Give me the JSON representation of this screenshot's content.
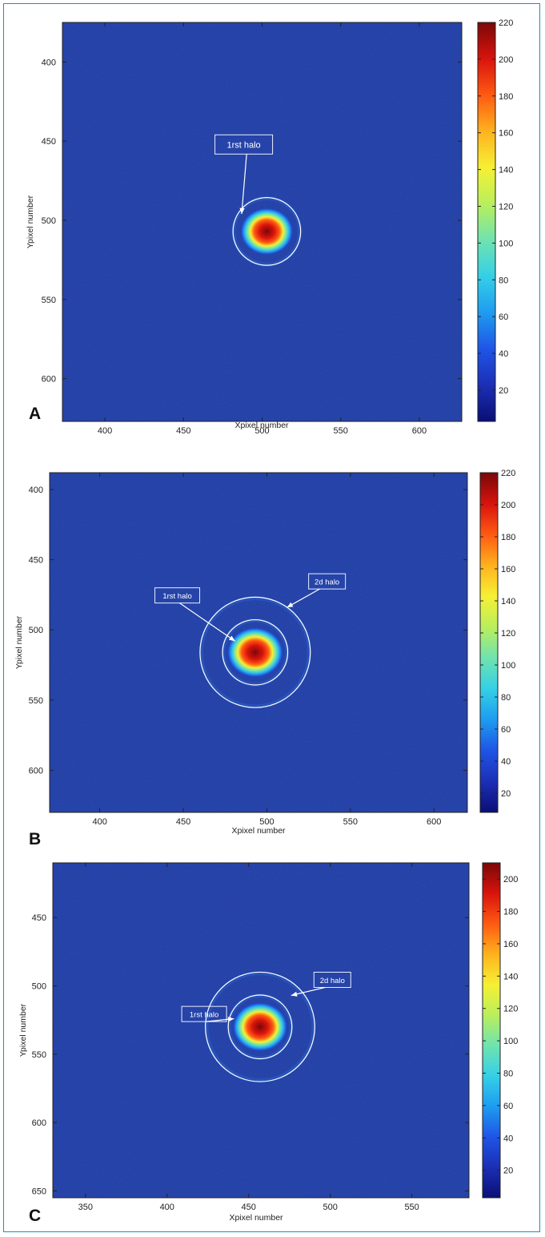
{
  "figure": {
    "frame_color": "#1d8fbf",
    "background_color": "#1f3aa0",
    "halo_color": "#ffffff",
    "colormap": [
      "#0a0f75",
      "#1c2fb5",
      "#1f55e6",
      "#1e9cf0",
      "#35d0e6",
      "#6fe3b0",
      "#b9ef5c",
      "#f6f034",
      "#ffb21e",
      "#ff5a12",
      "#d8130d",
      "#7a0808"
    ]
  },
  "chart_data": [
    {
      "panel_label": "A",
      "type": "heatmap",
      "xlabel": "Xpixel number",
      "ylabel": "Ypixel number",
      "xlim": [
        373,
        627
      ],
      "ylim": [
        375,
        627
      ],
      "xticks": [
        400,
        450,
        500,
        550,
        600
      ],
      "yticks": [
        400,
        450,
        500,
        550,
        600
      ],
      "colorbar": {
        "range": [
          3,
          220
        ],
        "ticks": [
          20,
          40,
          60,
          80,
          100,
          120,
          140,
          160,
          180,
          200,
          220
        ]
      },
      "spot": {
        "x": 503,
        "y": 507,
        "peak": 220
      },
      "halos": [
        {
          "x": 503,
          "y": 507,
          "r": 21.5
        }
      ],
      "annotations": [
        {
          "text": "1rst halo",
          "box_x": 470,
          "box_y": 446,
          "arrow_to": [
            487,
            496
          ]
        }
      ]
    },
    {
      "panel_label": "B",
      "type": "heatmap",
      "xlabel": "Xpixel number",
      "ylabel": "Ypixel number",
      "xlim": [
        370,
        620
      ],
      "ylim": [
        388,
        630
      ],
      "xticks": [
        400,
        450,
        500,
        550,
        600
      ],
      "yticks": [
        400,
        450,
        500,
        550,
        600
      ],
      "colorbar": {
        "range": [
          8,
          220
        ],
        "ticks": [
          20,
          40,
          60,
          80,
          100,
          120,
          140,
          160,
          180,
          200,
          220
        ]
      },
      "spot": {
        "x": 493,
        "y": 516,
        "peak": 215
      },
      "halos": [
        {
          "x": 493,
          "y": 516,
          "r": 19.5
        },
        {
          "x": 493,
          "y": 516,
          "r": 33
        }
      ],
      "annotations": [
        {
          "text": "1rst halo",
          "box_x": 433,
          "box_y": 470,
          "arrow_to": [
            481,
            508
          ]
        },
        {
          "text": "2d halo",
          "box_x": 525,
          "box_y": 460,
          "arrow_to": [
            512,
            484
          ]
        }
      ]
    },
    {
      "panel_label": "C",
      "type": "heatmap",
      "xlabel": "Xpixel number",
      "ylabel": "Ypixel number",
      "xlim": [
        330,
        585
      ],
      "ylim": [
        410,
        655
      ],
      "xticks": [
        350,
        400,
        450,
        500,
        550
      ],
      "yticks": [
        450,
        500,
        550,
        600,
        650
      ],
      "colorbar": {
        "range": [
          3,
          210
        ],
        "ticks": [
          20,
          40,
          60,
          80,
          100,
          120,
          140,
          160,
          180,
          200
        ]
      },
      "spot": {
        "x": 457,
        "y": 530,
        "peak": 205
      },
      "halos": [
        {
          "x": 457,
          "y": 530,
          "r": 19.5
        },
        {
          "x": 457,
          "y": 530,
          "r": 33.5
        }
      ],
      "annotations": [
        {
          "text": "1rst halo",
          "box_x": 409,
          "box_y": 515,
          "arrow_to": [
            441,
            524
          ]
        },
        {
          "text": "2d halo",
          "box_x": 490,
          "box_y": 490,
          "arrow_to": [
            476,
            507
          ]
        }
      ]
    }
  ]
}
